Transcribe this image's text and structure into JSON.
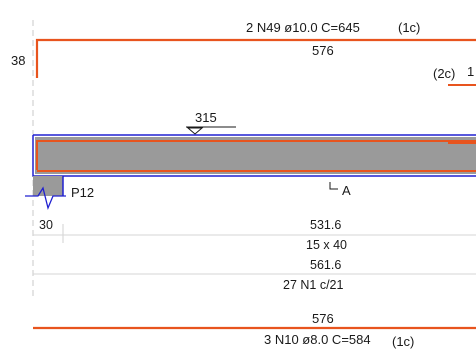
{
  "top_bar": {
    "spec": "2 N49 ø10.0 C=645",
    "group": "(1c)",
    "length": "576",
    "hook": "38"
  },
  "secondary_bar": {
    "group": "(2c)",
    "number": "1"
  },
  "slab": {
    "level": "315",
    "support_label": "P12",
    "section_mark": "A"
  },
  "dimensions": {
    "support_width": "30",
    "clear_span": "531.6",
    "section": "15 x 40",
    "total_length": "561.6",
    "stirrups": "27 N1 c/21"
  },
  "bottom_bar": {
    "length": "576",
    "spec": "3 N10 ø8.0 C=584",
    "group": "(1c)"
  },
  "colors": {
    "rebar": "#e8541e",
    "formwork": "#2020d0",
    "concrete": "#9a9a9a",
    "text": "#1a1a1a"
  }
}
